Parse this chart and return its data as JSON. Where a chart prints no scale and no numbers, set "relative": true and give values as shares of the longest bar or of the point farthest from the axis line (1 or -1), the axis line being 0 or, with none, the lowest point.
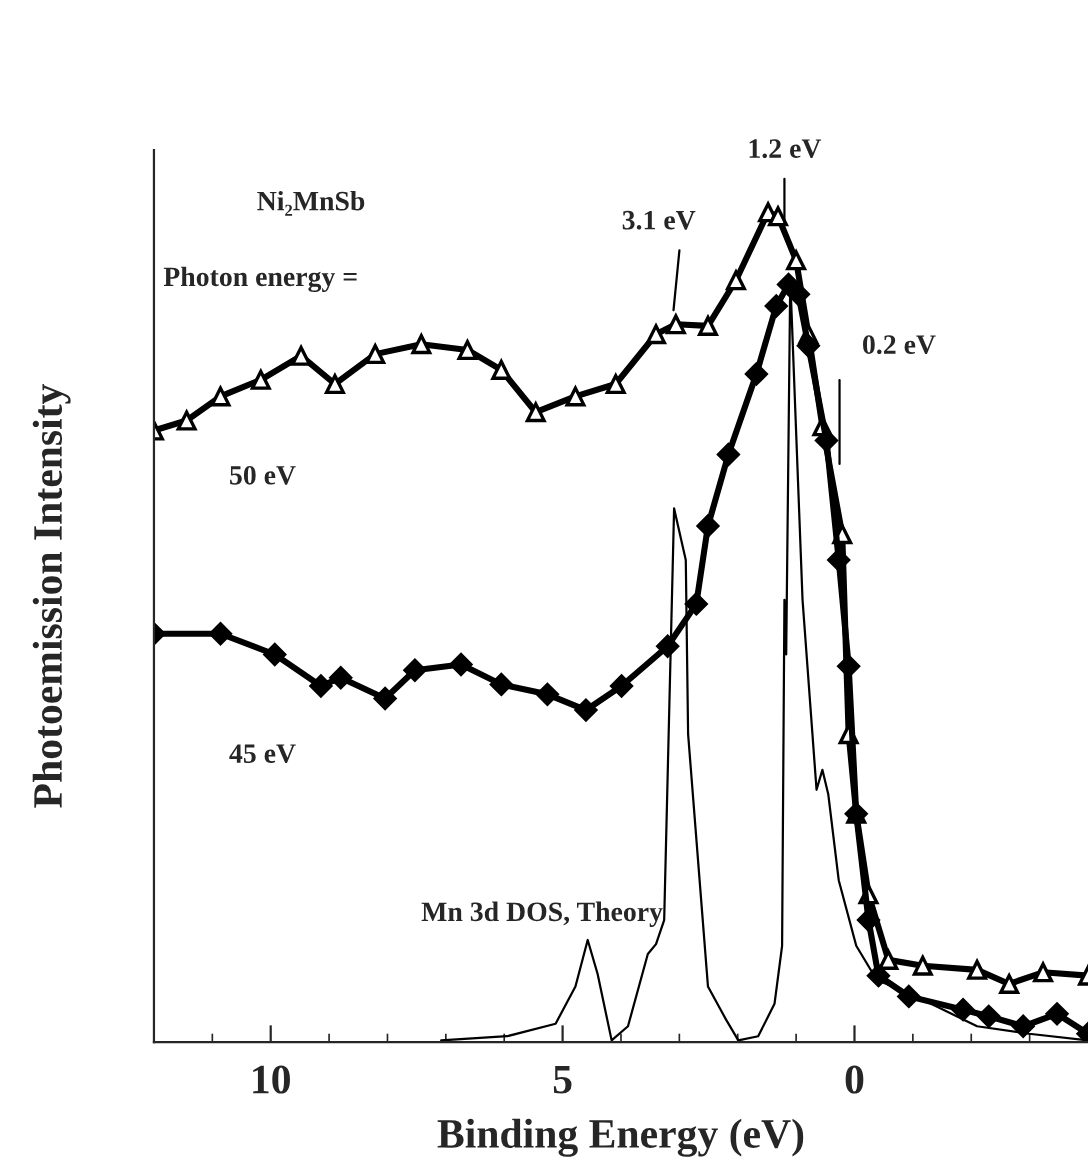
{
  "chart_data": {
    "type": "line",
    "relative": true,
    "xlabel": "Binding Energy (eV)",
    "ylabel": "Photoemission Intensity",
    "xlim": [
      12,
      -4
    ],
    "xticks": [
      10,
      5,
      0
    ],
    "grid": false,
    "legend": false,
    "series": [
      {
        "name": "50 eV",
        "color": "#000000",
        "marker": "triangle",
        "x": [
          12.0,
          11.44,
          10.86,
          10.17,
          9.48,
          8.9,
          8.21,
          7.42,
          6.63,
          6.05,
          5.46,
          4.78,
          4.09,
          3.4,
          3.06,
          2.51,
          2.03,
          1.48,
          1.31,
          1.0,
          0.79,
          0.55,
          0.21,
          0.1,
          -0.03,
          -0.24,
          -0.58,
          -1.17,
          -2.1,
          -2.65,
          -3.23,
          -4.0
        ],
        "values": [
          0.737,
          0.749,
          0.778,
          0.798,
          0.827,
          0.793,
          0.829,
          0.841,
          0.834,
          0.81,
          0.759,
          0.778,
          0.793,
          0.853,
          0.865,
          0.863,
          0.918,
          1.0,
          0.995,
          0.942,
          0.853,
          0.742,
          0.612,
          0.371,
          0.275,
          0.178,
          0.099,
          0.092,
          0.087,
          0.07,
          0.084,
          0.08
        ]
      },
      {
        "name": "45 eV",
        "color": "#000000",
        "marker": "diamond",
        "x": [
          12.0,
          10.86,
          9.93,
          9.14,
          8.8,
          8.04,
          7.53,
          6.74,
          6.05,
          5.26,
          4.6,
          3.99,
          3.2,
          2.71,
          2.51,
          2.16,
          1.68,
          1.34,
          1.13,
          0.96,
          0.79,
          0.48,
          0.27,
          0.1,
          -0.03,
          -0.24,
          -0.41,
          -0.93,
          -1.86,
          -2.3,
          -2.89,
          -3.47,
          -4.0
        ],
        "values": [
          0.492,
          0.492,
          0.467,
          0.429,
          0.439,
          0.414,
          0.448,
          0.455,
          0.431,
          0.419,
          0.4,
          0.429,
          0.477,
          0.528,
          0.622,
          0.708,
          0.805,
          0.887,
          0.913,
          0.901,
          0.839,
          0.725,
          0.581,
          0.453,
          0.275,
          0.147,
          0.08,
          0.055,
          0.039,
          0.031,
          0.019,
          0.034,
          0.01
        ]
      },
      {
        "name": "Mn 3d DOS, Theory",
        "color": "#000000",
        "marker": "none",
        "x": [
          7.08,
          5.95,
          5.12,
          4.78,
          4.57,
          4.4,
          4.16,
          3.88,
          3.54,
          3.4,
          3.26,
          3.09,
          2.89,
          2.85,
          2.51,
          2.2,
          1.99,
          1.65,
          1.37,
          1.24,
          1.2,
          1.17,
          1.1,
          0.89,
          0.65,
          0.55,
          0.45,
          0.27,
          -0.03,
          -0.38,
          -1.17,
          -2.1,
          -2.99,
          -4.0
        ],
        "values": [
          0.002,
          0.007,
          0.022,
          0.067,
          0.123,
          0.082,
          0.002,
          0.019,
          0.106,
          0.118,
          0.147,
          0.643,
          0.581,
          0.371,
          0.067,
          0.027,
          0.002,
          0.007,
          0.046,
          0.116,
          0.533,
          0.467,
          0.92,
          0.533,
          0.304,
          0.328,
          0.299,
          0.195,
          0.116,
          0.075,
          0.051,
          0.019,
          0.01,
          0.002
        ]
      }
    ],
    "annotations": [
      "Ni₂MnSb",
      "Photon energy =",
      {
        "text": "3.1 eV",
        "x": 3.1,
        "y": 0.882
      },
      {
        "text": "1.2 eV",
        "x": 1.2,
        "y": 0.985
      },
      "0.2 eV"
    ]
  }
}
